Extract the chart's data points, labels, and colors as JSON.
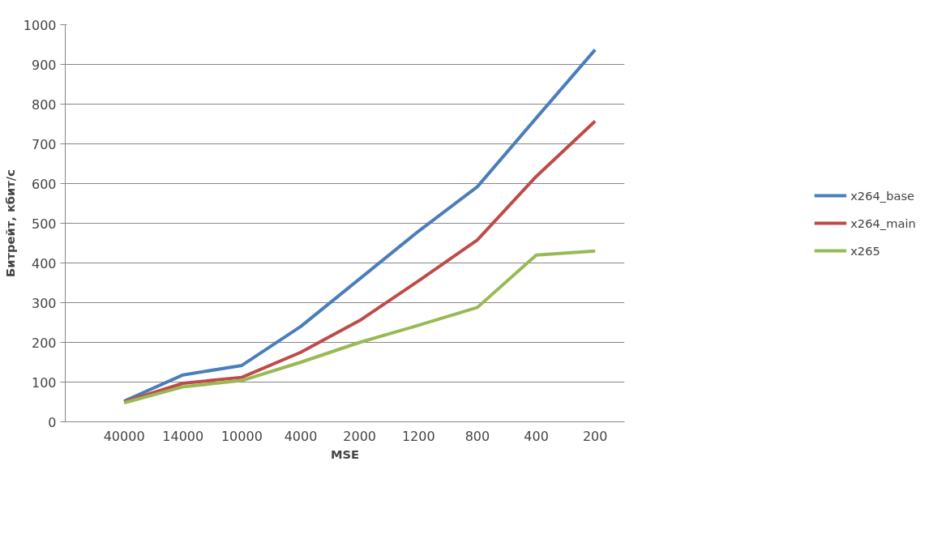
{
  "chart_data": {
    "type": "line",
    "xlabel": "MSE",
    "ylabel": "Битрейт, кбит/с",
    "categories": [
      "40000",
      "14000",
      "10000",
      "4000",
      "2000",
      "1200",
      "800",
      "400",
      "200"
    ],
    "series": [
      {
        "name": "x264_base",
        "color": "#4a7ebb",
        "values": [
          52,
          118,
          142,
          240,
          360,
          480,
          592,
          765,
          937
        ]
      },
      {
        "name": "x264_main",
        "color": "#be4b48",
        "values": [
          50,
          97,
          112,
          175,
          255,
          355,
          458,
          618,
          757
        ]
      },
      {
        "name": "x265",
        "color": "#98b954",
        "values": [
          48,
          88,
          104,
          150,
          200,
          243,
          288,
          420,
          430
        ]
      }
    ],
    "ylim": [
      0,
      1000
    ],
    "yticks": [
      0,
      100,
      200,
      300,
      400,
      500,
      600,
      700,
      800,
      900,
      1000
    ],
    "grid": "y",
    "legend": "right",
    "marker": "none",
    "line_style": "solid"
  }
}
